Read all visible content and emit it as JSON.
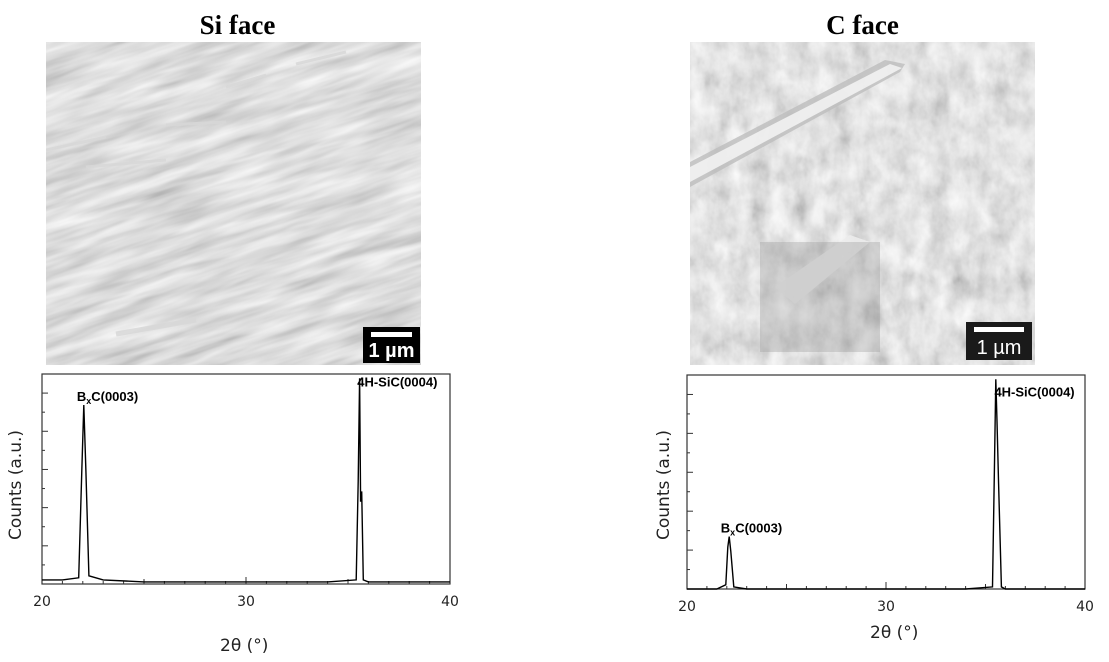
{
  "panels": [
    {
      "title": "Si face",
      "scale_bar": "1 µm"
    },
    {
      "title": "C face",
      "scale_bar": "1 µm"
    }
  ],
  "chart_data": [
    {
      "type": "line",
      "xlabel": "2θ (°)",
      "ylabel": "Counts (a.u.)",
      "xlim": [
        20,
        40
      ],
      "xticks": [
        "20",
        "30",
        "40"
      ],
      "x": [
        20,
        21,
        21.8,
        21.95,
        22.05,
        22.15,
        22.3,
        23,
        25,
        30,
        34,
        35.4,
        35.5,
        35.57,
        35.62,
        35.67,
        35.75,
        36,
        38,
        40
      ],
      "series": [
        {
          "values": [
            0.02,
            0.02,
            0.03,
            0.55,
            0.87,
            0.55,
            0.04,
            0.02,
            0.01,
            0.01,
            0.01,
            0.02,
            0.5,
            1.0,
            0.4,
            0.45,
            0.02,
            0.01,
            0.01,
            0.01
          ]
        }
      ],
      "annotations": [
        {
          "text": "B",
          "sub": "x",
          "rest": "C(0003)",
          "x": 22.1,
          "y": 0.87
        },
        {
          "text": "4H-SiC(0004)",
          "x": 35.6,
          "y": 0.94
        }
      ]
    },
    {
      "type": "line",
      "xlabel": "2θ (°)",
      "ylabel": "Counts (a.u.)",
      "xlim": [
        20,
        40
      ],
      "xticks": [
        "20",
        "30",
        "40"
      ],
      "x": [
        20,
        21.5,
        21.95,
        22.05,
        22.12,
        22.2,
        22.35,
        23,
        25,
        30,
        34,
        35.35,
        35.45,
        35.52,
        35.58,
        35.66,
        35.8,
        36,
        38,
        40
      ],
      "series": [
        {
          "values": [
            0.0,
            0.0,
            0.02,
            0.2,
            0.25,
            0.18,
            0.01,
            0.0,
            0.0,
            0.0,
            0.0,
            0.01,
            0.6,
            1.0,
            0.8,
            0.5,
            0.01,
            0.0,
            0.0,
            0.0
          ]
        }
      ],
      "annotations": [
        {
          "text": "B",
          "sub": "x",
          "rest": "C(0003)",
          "x": 22.1,
          "y": 0.25
        },
        {
          "text": "4H-SiC(0004)",
          "x": 35.6,
          "y": 0.9
        }
      ]
    }
  ]
}
